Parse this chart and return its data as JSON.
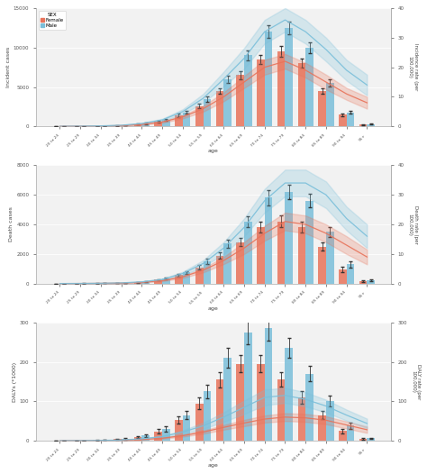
{
  "age_labels": [
    "20 to 24",
    "25 to 29",
    "30 to 34",
    "35 to 39",
    "40 to 44",
    "45 to 49",
    "50 to 54",
    "55 to 59",
    "60 to 64",
    "65 to 69",
    "70 to 74",
    "75 to 79",
    "80 to 84",
    "85 to 89",
    "90 to 94",
    "95+"
  ],
  "female_color": "#E8735A",
  "male_color": "#7ABFDA",
  "bg_color": "#F2F2F2",
  "panel1": {
    "ylabel_left": "Incident cases",
    "ylabel_right": "Incidence rate (per\n100,000)",
    "female_bars": [
      20,
      30,
      60,
      120,
      300,
      650,
      1400,
      2600,
      4500,
      6500,
      8500,
      9500,
      8000,
      4500,
      1500,
      250
    ],
    "male_bars": [
      25,
      35,
      70,
      150,
      380,
      820,
      1800,
      3500,
      6000,
      9000,
      12000,
      12500,
      10000,
      5500,
      1800,
      280
    ],
    "female_err": [
      8,
      10,
      18,
      30,
      60,
      110,
      180,
      280,
      380,
      500,
      600,
      650,
      560,
      380,
      180,
      60
    ],
    "male_err": [
      8,
      10,
      20,
      35,
      70,
      130,
      220,
      350,
      480,
      650,
      800,
      820,
      700,
      460,
      220,
      70
    ],
    "female_rate": [
      0.05,
      0.08,
      0.15,
      0.28,
      0.7,
      1.5,
      3.2,
      6.0,
      10.0,
      15.0,
      20.0,
      22.0,
      19.0,
      15.0,
      11.0,
      8.0
    ],
    "male_rate": [
      0.06,
      0.1,
      0.2,
      0.4,
      1.0,
      2.2,
      5.0,
      9.5,
      16.0,
      23.0,
      32.0,
      36.0,
      32.0,
      26.0,
      19.0,
      14.0
    ],
    "female_rate_lo": [
      0.04,
      0.06,
      0.12,
      0.22,
      0.55,
      1.2,
      2.7,
      5.0,
      8.5,
      13.0,
      17.5,
      19.5,
      16.5,
      12.5,
      9.0,
      6.0
    ],
    "female_rate_hi": [
      0.06,
      0.1,
      0.18,
      0.34,
      0.85,
      1.8,
      3.7,
      7.0,
      11.5,
      17.0,
      22.5,
      24.5,
      21.5,
      17.5,
      13.0,
      10.0
    ],
    "male_rate_lo": [
      0.05,
      0.08,
      0.16,
      0.32,
      0.82,
      1.8,
      4.2,
      8.0,
      13.5,
      19.5,
      28.0,
      32.0,
      28.0,
      22.0,
      15.5,
      10.5
    ],
    "male_rate_hi": [
      0.07,
      0.12,
      0.24,
      0.48,
      1.18,
      2.6,
      5.8,
      11.0,
      18.5,
      26.5,
      36.0,
      40.0,
      36.0,
      30.0,
      22.5,
      17.5
    ],
    "ylim_left": [
      0,
      15000
    ],
    "ylim_right": [
      0,
      40
    ],
    "yticks_left": [
      0,
      5000,
      10000,
      15000
    ],
    "yticks_right": [
      0,
      10,
      20,
      30,
      40
    ]
  },
  "panel2": {
    "ylabel_left": "Death cases",
    "ylabel_right": "Death rate (per\n100,000)",
    "female_bars": [
      5,
      8,
      18,
      40,
      100,
      260,
      580,
      1100,
      1900,
      2800,
      3800,
      4200,
      3800,
      2500,
      950,
      180
    ],
    "male_bars": [
      6,
      10,
      22,
      50,
      130,
      330,
      750,
      1500,
      2700,
      4200,
      5800,
      6200,
      5600,
      3500,
      1300,
      220
    ],
    "female_err": [
      3,
      4,
      8,
      14,
      28,
      55,
      95,
      145,
      210,
      290,
      370,
      400,
      370,
      280,
      160,
      50
    ],
    "male_err": [
      3,
      4,
      9,
      16,
      34,
      65,
      115,
      185,
      270,
      380,
      490,
      510,
      470,
      340,
      200,
      60
    ],
    "female_rate": [
      0.02,
      0.04,
      0.09,
      0.17,
      0.42,
      0.98,
      2.3,
      4.5,
      7.8,
      12.0,
      17.0,
      21.0,
      20.0,
      17.0,
      13.0,
      9.0
    ],
    "male_rate": [
      0.03,
      0.05,
      0.12,
      0.24,
      0.6,
      1.4,
      3.4,
      6.8,
      12.0,
      19.0,
      28.0,
      34.0,
      34.0,
      30.0,
      22.0,
      16.0
    ],
    "female_rate_lo": [
      0.01,
      0.03,
      0.07,
      0.13,
      0.34,
      0.8,
      1.9,
      3.8,
      6.6,
      10.0,
      14.5,
      18.0,
      17.0,
      14.0,
      10.0,
      6.5
    ],
    "female_rate_hi": [
      0.03,
      0.05,
      0.11,
      0.21,
      0.5,
      1.16,
      2.7,
      5.2,
      9.0,
      14.0,
      19.5,
      24.0,
      23.0,
      20.0,
      16.0,
      11.5
    ],
    "male_rate_lo": [
      0.02,
      0.04,
      0.1,
      0.2,
      0.5,
      1.16,
      2.8,
      5.7,
      10.0,
      16.0,
      24.0,
      29.5,
      29.5,
      25.5,
      18.0,
      12.0
    ],
    "male_rate_hi": [
      0.04,
      0.06,
      0.14,
      0.28,
      0.7,
      1.64,
      4.0,
      7.9,
      14.0,
      22.0,
      32.0,
      38.5,
      38.5,
      34.5,
      26.0,
      20.0
    ],
    "ylim_left": [
      0,
      8000
    ],
    "ylim_right": [
      0,
      40
    ],
    "yticks_left": [
      0,
      2000,
      4000,
      6000,
      8000
    ],
    "yticks_right": [
      0,
      10,
      20,
      30,
      40
    ]
  },
  "panel3": {
    "ylabel_left": "DALYs (*1000)",
    "ylabel_right": "DALY rate (per\n100,000)",
    "female_bars": [
      0.5,
      0.8,
      1.8,
      4.0,
      10.0,
      24.0,
      52.0,
      95.0,
      155.0,
      195.0,
      195.0,
      155.0,
      110.0,
      65.0,
      25.0,
      4.5
    ],
    "male_bars": [
      0.6,
      1.0,
      2.2,
      5.0,
      13.0,
      30.0,
      65.0,
      125.0,
      210.0,
      275.0,
      285.0,
      235.0,
      170.0,
      100.0,
      38.0,
      6.0
    ],
    "female_err": [
      0.2,
      0.3,
      0.6,
      1.2,
      2.5,
      5.0,
      9.0,
      14.0,
      19.0,
      22.0,
      22.0,
      18.0,
      15.0,
      11.0,
      6.0,
      1.5
    ],
    "male_err": [
      0.2,
      0.3,
      0.7,
      1.4,
      3.0,
      6.0,
      11.0,
      18.0,
      25.0,
      30.0,
      31.0,
      25.0,
      19.0,
      14.0,
      7.5,
      1.8
    ],
    "female_rate": [
      0.2,
      0.35,
      0.7,
      1.4,
      3.2,
      6.5,
      13.0,
      22.0,
      34.0,
      45.0,
      55.0,
      60.0,
      58.0,
      52.0,
      40.0,
      28.0
    ],
    "male_rate": [
      0.25,
      0.45,
      0.95,
      2.0,
      5.0,
      10.5,
      22.0,
      38.0,
      60.0,
      85.0,
      110.0,
      115.0,
      105.0,
      88.0,
      65.0,
      44.0
    ],
    "female_rate_lo": [
      0.15,
      0.28,
      0.56,
      1.1,
      2.5,
      5.2,
      10.5,
      18.0,
      28.0,
      37.0,
      46.0,
      50.0,
      48.0,
      42.0,
      31.0,
      20.0
    ],
    "female_rate_hi": [
      0.25,
      0.42,
      0.84,
      1.7,
      3.9,
      7.8,
      15.5,
      26.0,
      40.0,
      53.0,
      64.0,
      70.0,
      68.0,
      62.0,
      49.0,
      36.0
    ],
    "male_rate_lo": [
      0.2,
      0.36,
      0.76,
      1.6,
      4.0,
      8.4,
      17.5,
      30.0,
      48.0,
      68.0,
      90.0,
      96.0,
      87.0,
      72.0,
      51.0,
      32.0
    ],
    "male_rate_hi": [
      0.3,
      0.54,
      1.14,
      2.4,
      6.0,
      12.6,
      26.5,
      46.0,
      72.0,
      102.0,
      130.0,
      134.0,
      123.0,
      104.0,
      79.0,
      56.0
    ],
    "ylim_left": [
      0,
      300
    ],
    "ylim_right": [
      0,
      300
    ],
    "yticks_left": [
      0,
      100,
      200,
      300
    ],
    "yticks_right": [
      0,
      100,
      200,
      300
    ]
  }
}
